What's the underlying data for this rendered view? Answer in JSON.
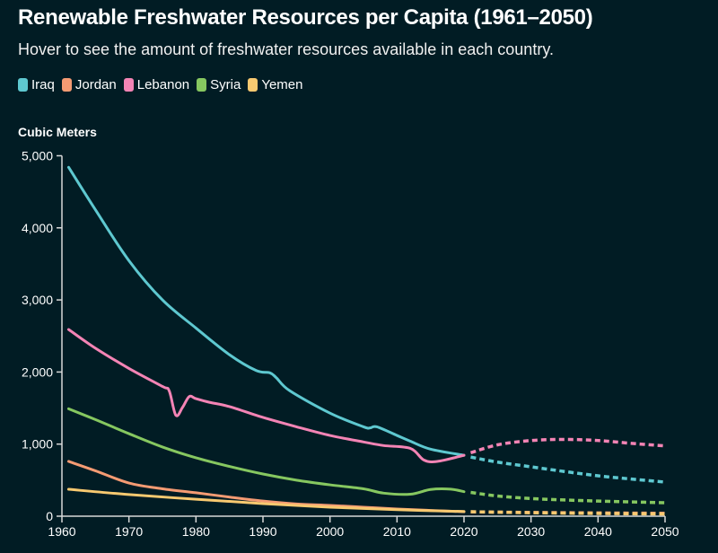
{
  "chart_data": {
    "type": "line",
    "title": "Renewable Freshwater Resources per Capita (1961–2050)",
    "subtitle": "Hover to see the amount of freshwater resources available in each country.",
    "ylabel": "Cubic Meters",
    "xlabel": "",
    "xlim": [
      1960,
      2050
    ],
    "ylim": [
      0,
      5000
    ],
    "x_ticks": [
      "1960",
      "1970",
      "1980",
      "1990",
      "2000",
      "2010",
      "2020",
      "2030",
      "2040",
      "2050"
    ],
    "y_ticks": [
      "0",
      "1,000",
      "2,000",
      "3,000",
      "4,000",
      "5,000"
    ],
    "grid": false,
    "legend_placement": "top-left",
    "projection_start": 2021,
    "projection_style": "dashed",
    "series": [
      {
        "name": "Iraq",
        "color": "#5ec8d0",
        "historical": [
          [
            1961,
            4840
          ],
          [
            1965,
            4250
          ],
          [
            1970,
            3545
          ],
          [
            1975,
            3000
          ],
          [
            1980,
            2610
          ],
          [
            1985,
            2240
          ],
          [
            1989,
            2020
          ],
          [
            1991,
            1990
          ],
          [
            1992,
            1920
          ],
          [
            1994,
            1740
          ],
          [
            2000,
            1430
          ],
          [
            2005,
            1240
          ],
          [
            2006,
            1225
          ],
          [
            2007,
            1240
          ],
          [
            2010,
            1120
          ],
          [
            2012,
            1040
          ],
          [
            2015,
            930
          ],
          [
            2020,
            845
          ]
        ],
        "projection": [
          [
            2021,
            820
          ],
          [
            2025,
            750
          ],
          [
            2030,
            685
          ],
          [
            2035,
            620
          ],
          [
            2040,
            560
          ],
          [
            2045,
            515
          ],
          [
            2050,
            473
          ]
        ]
      },
      {
        "name": "Jordan",
        "color": "#f59b73",
        "historical": [
          [
            1961,
            760
          ],
          [
            1965,
            630
          ],
          [
            1970,
            460
          ],
          [
            1975,
            380
          ],
          [
            1980,
            325
          ],
          [
            1985,
            265
          ],
          [
            1990,
            210
          ],
          [
            1995,
            170
          ],
          [
            2000,
            150
          ],
          [
            2005,
            125
          ],
          [
            2010,
            100
          ],
          [
            2015,
            80
          ],
          [
            2020,
            62
          ]
        ],
        "projection": [
          [
            2021,
            60
          ],
          [
            2030,
            52
          ],
          [
            2040,
            45
          ],
          [
            2050,
            40
          ]
        ]
      },
      {
        "name": "Lebanon",
        "color": "#f484b5",
        "historical": [
          [
            1961,
            2590
          ],
          [
            1965,
            2330
          ],
          [
            1970,
            2050
          ],
          [
            1975,
            1800
          ],
          [
            1976,
            1740
          ],
          [
            1977,
            1400
          ],
          [
            1978,
            1510
          ],
          [
            1979,
            1660
          ],
          [
            1980,
            1630
          ],
          [
            1982,
            1580
          ],
          [
            1985,
            1520
          ],
          [
            1990,
            1370
          ],
          [
            1995,
            1240
          ],
          [
            2000,
            1120
          ],
          [
            2005,
            1030
          ],
          [
            2008,
            980
          ],
          [
            2012,
            940
          ],
          [
            2014,
            780
          ],
          [
            2016,
            760
          ],
          [
            2020,
            845
          ]
        ],
        "projection": [
          [
            2021,
            880
          ],
          [
            2025,
            990
          ],
          [
            2030,
            1050
          ],
          [
            2035,
            1065
          ],
          [
            2040,
            1050
          ],
          [
            2045,
            1010
          ],
          [
            2050,
            975
          ]
        ]
      },
      {
        "name": "Syria",
        "color": "#86c760",
        "historical": [
          [
            1961,
            1490
          ],
          [
            1965,
            1340
          ],
          [
            1970,
            1145
          ],
          [
            1975,
            960
          ],
          [
            1980,
            810
          ],
          [
            1985,
            690
          ],
          [
            1990,
            585
          ],
          [
            1995,
            500
          ],
          [
            2000,
            435
          ],
          [
            2005,
            380
          ],
          [
            2008,
            320
          ],
          [
            2012,
            305
          ],
          [
            2015,
            370
          ],
          [
            2018,
            375
          ],
          [
            2020,
            340
          ]
        ],
        "projection": [
          [
            2021,
            330
          ],
          [
            2025,
            280
          ],
          [
            2030,
            245
          ],
          [
            2035,
            225
          ],
          [
            2040,
            210
          ],
          [
            2045,
            198
          ],
          [
            2050,
            187
          ]
        ]
      },
      {
        "name": "Yemen",
        "color": "#f8c970",
        "historical": [
          [
            1961,
            373
          ],
          [
            1970,
            300
          ],
          [
            1980,
            235
          ],
          [
            1990,
            175
          ],
          [
            2000,
            125
          ],
          [
            2010,
            90
          ],
          [
            2020,
            65
          ]
        ],
        "projection": [
          [
            2021,
            62
          ],
          [
            2030,
            48
          ],
          [
            2040,
            38
          ],
          [
            2050,
            30
          ]
        ]
      }
    ]
  }
}
